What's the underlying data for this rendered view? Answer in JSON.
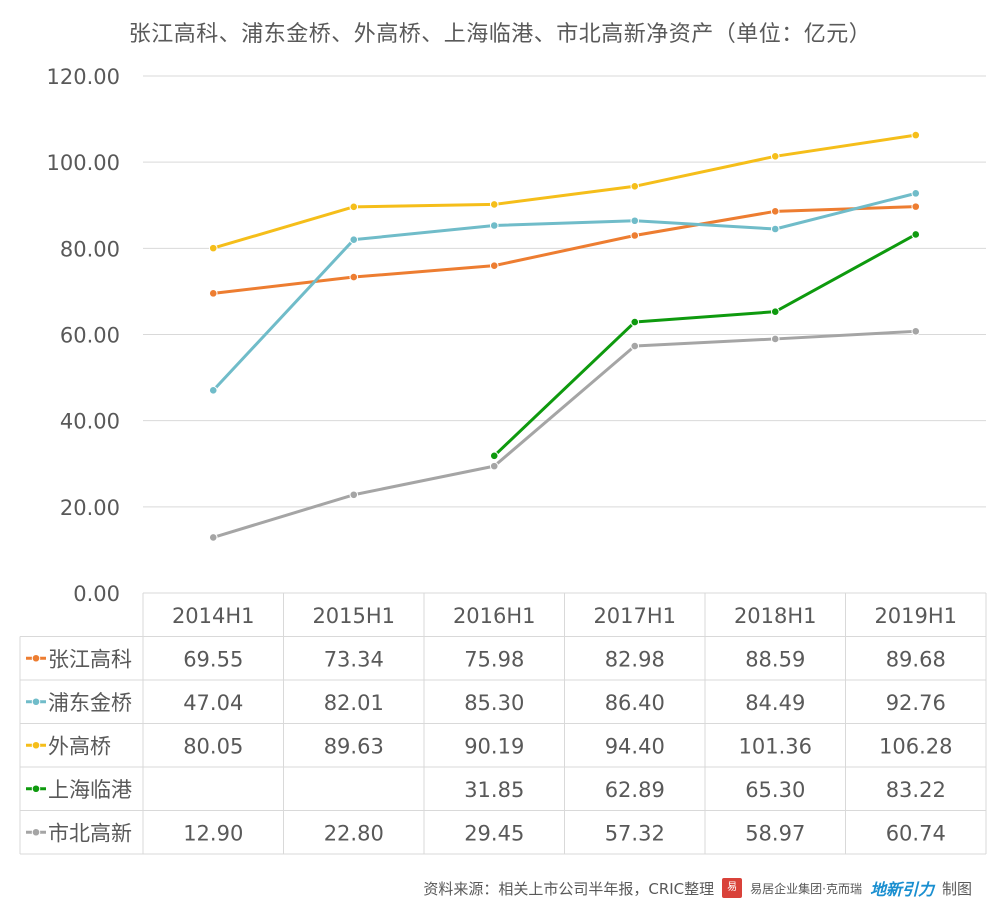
{
  "chart_data": {
    "type": "line",
    "title": "张江高科、浦东金桥、外高桥、上海临港、市北高新净资产（单位：亿元）",
    "categories": [
      "2014H1",
      "2015H1",
      "2016H1",
      "2017H1",
      "2018H1",
      "2019H1"
    ],
    "ylim": [
      0,
      120
    ],
    "yticks": [
      "0.00",
      "20.00",
      "40.00",
      "60.00",
      "80.00",
      "100.00",
      "120.00"
    ],
    "grid": true,
    "legend_placement": "data-table-left",
    "series": [
      {
        "name": "张江高科",
        "color": "#ED7D31",
        "values": [
          69.55,
          73.34,
          75.98,
          82.98,
          88.59,
          89.68
        ],
        "labels": [
          "69.55",
          "73.34",
          "75.98",
          "82.98",
          "88.59",
          "89.68"
        ]
      },
      {
        "name": "浦东金桥",
        "color": "#70BCC9",
        "values": [
          47.04,
          82.01,
          85.3,
          86.4,
          84.49,
          92.76
        ],
        "labels": [
          "47.04",
          "82.01",
          "85.30",
          "86.40",
          "84.49",
          "92.76"
        ]
      },
      {
        "name": "外高桥",
        "color": "#F5BE1A",
        "values": [
          80.05,
          89.63,
          90.19,
          94.4,
          101.36,
          106.28
        ],
        "labels": [
          "80.05",
          "89.63",
          "90.19",
          "94.40",
          "101.36",
          "106.28"
        ]
      },
      {
        "name": "上海临港",
        "color": "#0E9A0E",
        "values": [
          null,
          null,
          31.85,
          62.89,
          65.3,
          83.22
        ],
        "labels": [
          "",
          "",
          "31.85",
          "62.89",
          "65.30",
          "83.22"
        ]
      },
      {
        "name": "市北高新",
        "color": "#A5A5A5",
        "values": [
          12.9,
          22.8,
          29.45,
          57.32,
          58.97,
          60.74
        ],
        "labels": [
          "12.90",
          "22.80",
          "29.45",
          "57.32",
          "58.97",
          "60.74"
        ]
      }
    ]
  },
  "footer": {
    "source": "资料来源：相关上市公司半年报，CRIC整理",
    "logo_seal": "易",
    "logo_text": "易居企业集团·克而瑞",
    "logo_script": "地新引力",
    "made_by": "制图"
  }
}
